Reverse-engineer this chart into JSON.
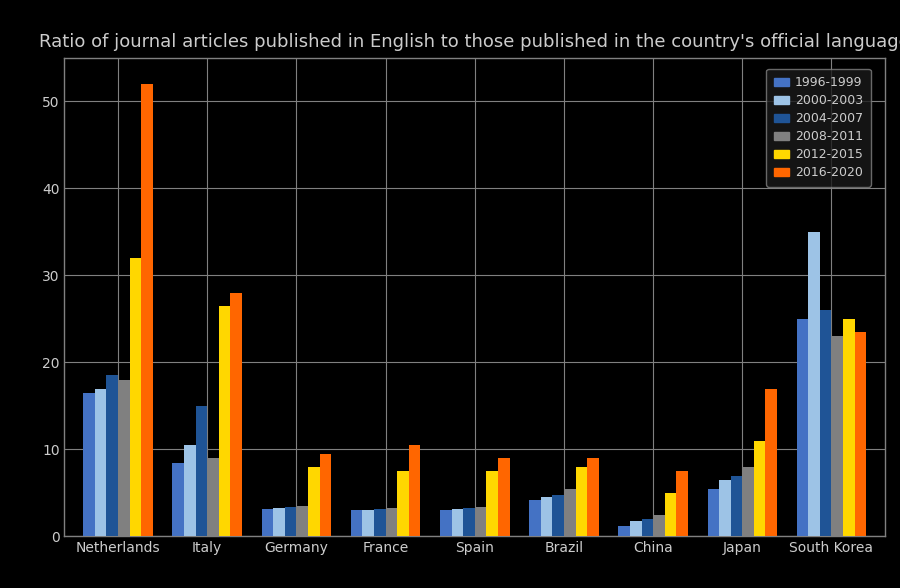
{
  "title": "Ratio of journal articles published in English to those published in the country's official language",
  "categories": [
    "Netherlands",
    "Italy",
    "Germany",
    "France",
    "Spain",
    "Brazil",
    "China",
    "Japan",
    "South Korea"
  ],
  "series": [
    {
      "label": "1996-1999",
      "color": "#4472C4",
      "values": [
        16.5,
        8.5,
        3.2,
        3.0,
        3.0,
        4.2,
        1.2,
        5.5,
        25.0
      ]
    },
    {
      "label": "2000-2003",
      "color": "#9DC3E6",
      "values": [
        17.0,
        10.5,
        3.3,
        3.1,
        3.2,
        4.5,
        1.8,
        6.5,
        35.0
      ]
    },
    {
      "label": "2004-2007",
      "color": "#1F5496",
      "values": [
        18.5,
        15.0,
        3.4,
        3.2,
        3.3,
        4.8,
        2.0,
        7.0,
        26.0
      ]
    },
    {
      "label": "2008-2011",
      "color": "#808080",
      "values": [
        18.0,
        9.0,
        3.5,
        3.3,
        3.4,
        5.5,
        2.5,
        8.0,
        23.0
      ]
    },
    {
      "label": "2012-2015",
      "color": "#FFD700",
      "values": [
        32.0,
        26.5,
        8.0,
        7.5,
        7.5,
        8.0,
        5.0,
        11.0,
        25.0
      ]
    },
    {
      "label": "2016-2020",
      "color": "#FF6600",
      "values": [
        52.0,
        28.0,
        9.5,
        10.5,
        9.0,
        9.0,
        7.5,
        17.0,
        23.5
      ]
    }
  ],
  "ylim": [
    0,
    55
  ],
  "yticks": [
    0,
    10,
    20,
    30,
    40,
    50
  ],
  "background_color": "#000000",
  "plot_bg_color": "#000000",
  "grid_color": "#808080",
  "text_color": "#cccccc",
  "title_fontsize": 13,
  "tick_fontsize": 10,
  "legend_fontsize": 9,
  "bar_width": 0.13
}
